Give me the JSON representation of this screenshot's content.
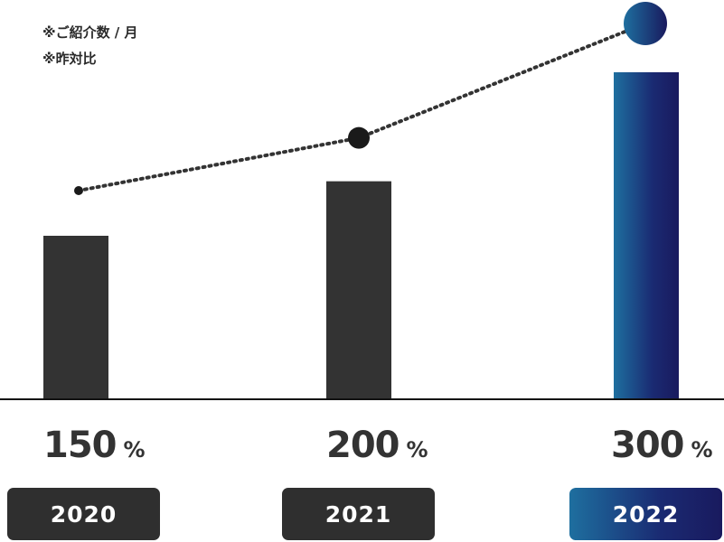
{
  "notes": {
    "line1": "※ご紹介数 / 月",
    "line2": "※昨対比"
  },
  "chart_data": {
    "type": "bar",
    "categories": [
      "2020",
      "2021",
      "2022"
    ],
    "values": [
      150,
      200,
      300
    ],
    "value_unit": "%",
    "has_trend_line": true,
    "highlight_color_start": "#1e6f9f",
    "highlight_color_end": "#191a5e",
    "bar_color": "#333333"
  },
  "labels": [
    {
      "value": "150",
      "unit": "%",
      "year": "2020"
    },
    {
      "value": "200",
      "unit": "%",
      "year": "2021"
    },
    {
      "value": "300",
      "unit": "%",
      "year": "2022"
    }
  ]
}
